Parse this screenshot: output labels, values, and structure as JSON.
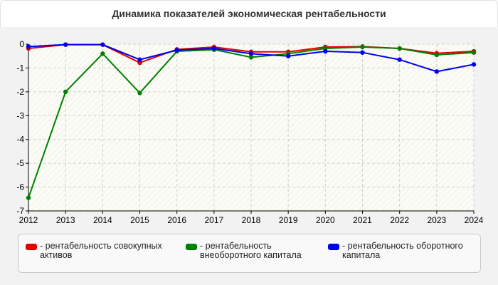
{
  "title": "Динамика показателей экономическая рентабельности",
  "chart_data": {
    "type": "line",
    "title": "Динамика показателей экономическая рентабельности",
    "xlabel": "",
    "ylabel": "",
    "categories": [
      "2012",
      "2013",
      "2014",
      "2015",
      "2016",
      "2017",
      "2018",
      "2019",
      "2020",
      "2021",
      "2022",
      "2023",
      "2024"
    ],
    "ylim": [
      -7,
      0
    ],
    "yticks": [
      0,
      -1,
      -2,
      -3,
      -4,
      -5,
      -6,
      -7
    ],
    "grid": true,
    "legend_position": "bottom",
    "series": [
      {
        "name": "рентабельность совокупных активов",
        "color": "#e00000",
        "values": [
          -0.18,
          -0.02,
          -0.02,
          -0.78,
          -0.22,
          -0.12,
          -0.32,
          -0.32,
          -0.12,
          -0.1,
          -0.18,
          -0.38,
          -0.3
        ]
      },
      {
        "name": "рентабельность внеоборотного капитала",
        "color": "#008000",
        "values": [
          -6.45,
          -2.0,
          -0.4,
          -2.05,
          -0.3,
          -0.23,
          -0.55,
          -0.4,
          -0.18,
          -0.12,
          -0.18,
          -0.45,
          -0.35
        ]
      },
      {
        "name": "рентабельность оборотного капитала",
        "color": "#0000ee",
        "values": [
          -0.1,
          -0.02,
          -0.02,
          -0.65,
          -0.25,
          -0.18,
          -0.4,
          -0.5,
          -0.3,
          -0.35,
          -0.65,
          -1.15,
          -0.85
        ]
      }
    ]
  },
  "legend": {
    "prefix": "- ",
    "items": [
      {
        "label": "рентабельность совокупных активов",
        "color": "#e00000"
      },
      {
        "label": "рентабельность внеоборотного капитала",
        "color": "#008000"
      },
      {
        "label": "рентабельность оборотного капитала",
        "color": "#0000ee"
      }
    ]
  }
}
